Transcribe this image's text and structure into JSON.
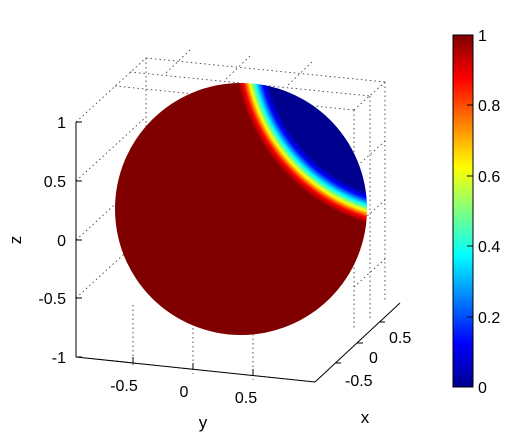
{
  "chart_data": {
    "type": "heatmap",
    "subtype": "3d-surface-sphere",
    "title": "",
    "xlabel": "x",
    "ylabel": "y",
    "zlabel": "z",
    "x_ticks": [
      "-0.5",
      "0",
      "0.5"
    ],
    "y_ticks": [
      "-0.5",
      "0",
      "0.5"
    ],
    "z_ticks": [
      "1",
      "0.5",
      "0",
      "-0.5",
      "-1"
    ],
    "xlim": [
      -1,
      1
    ],
    "ylim": [
      -1,
      1
    ],
    "zlim": [
      -1,
      1
    ],
    "grid": true,
    "colormap": "jet",
    "clim": [
      0,
      1
    ],
    "colorbar_ticks": [
      "1",
      "0.8",
      "0.6",
      "0.4",
      "0.2",
      "0"
    ],
    "colorbar_location": "right",
    "surface": {
      "shape": "unit sphere",
      "dominant_value": 1,
      "cap_value": 0,
      "cap_region": "upper-right (small polar cap)",
      "transition": "sharp, narrow"
    },
    "colors": {
      "high": "#800000",
      "low": "#00008f"
    }
  }
}
